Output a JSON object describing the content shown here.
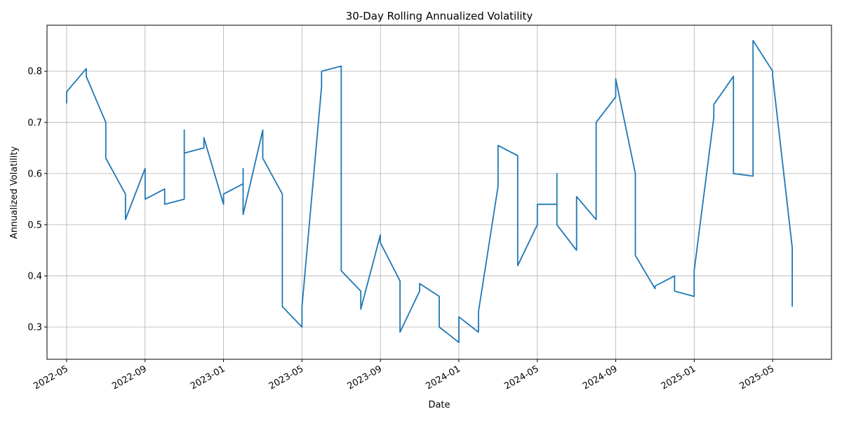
{
  "chart_data": {
    "type": "line",
    "title": "30-Day Rolling Annualized Volatility",
    "x_label": "Date",
    "y_label": "Annualized Volatility",
    "color": "#1f77b4",
    "grid": true,
    "x": [
      "2022-05",
      "2022-05",
      "2022-06",
      "2022-06",
      "2022-07",
      "2022-07",
      "2022-08",
      "2022-08",
      "2022-09",
      "2022-09",
      "2022-10",
      "2022-10",
      "2022-11",
      "2022-11",
      "2022-11",
      "2022-12",
      "2022-12",
      "2023-01",
      "2023-01",
      "2023-02",
      "2023-02",
      "2023-02",
      "2023-03",
      "2023-03",
      "2023-04",
      "2023-04",
      "2023-04",
      "2023-05",
      "2023-05",
      "2023-05",
      "2023-06",
      "2023-06",
      "2023-07",
      "2023-07",
      "2023-07",
      "2023-08",
      "2023-08",
      "2023-09",
      "2023-09",
      "2023-10",
      "2023-10",
      "2023-11",
      "2023-11",
      "2023-12",
      "2023-12",
      "2024-01",
      "2024-01",
      "2024-02",
      "2024-02",
      "2024-03",
      "2024-03",
      "2024-03",
      "2024-04",
      "2024-04",
      "2024-05",
      "2024-05",
      "2024-06",
      "2024-06",
      "2024-06",
      "2024-07",
      "2024-07",
      "2024-08",
      "2024-08",
      "2024-09",
      "2024-09",
      "2024-10",
      "2024-10",
      "2024-10",
      "2024-11",
      "2024-11",
      "2024-12",
      "2024-12",
      "2025-01",
      "2025-01",
      "2025-02",
      "2025-02",
      "2025-03",
      "2025-03",
      "2025-04",
      "2025-04",
      "2025-04",
      "2025-05",
      "2025-05",
      "2025-06",
      "2025-06",
      "2025-06"
    ],
    "values": [
      0.737,
      0.76,
      0.805,
      0.79,
      0.7,
      0.63,
      0.56,
      0.51,
      0.61,
      0.55,
      0.57,
      0.54,
      0.55,
      0.685,
      0.64,
      0.65,
      0.67,
      0.54,
      0.56,
      0.58,
      0.61,
      0.52,
      0.685,
      0.63,
      0.56,
      0.52,
      0.34,
      0.3,
      0.32,
      0.34,
      0.77,
      0.8,
      0.81,
      0.8,
      0.41,
      0.37,
      0.335,
      0.48,
      0.465,
      0.39,
      0.29,
      0.37,
      0.385,
      0.36,
      0.3,
      0.27,
      0.32,
      0.29,
      0.33,
      0.575,
      0.62,
      0.655,
      0.635,
      0.42,
      0.5,
      0.54,
      0.54,
      0.6,
      0.5,
      0.45,
      0.555,
      0.51,
      0.7,
      0.75,
      0.785,
      0.6,
      0.55,
      0.44,
      0.375,
      0.38,
      0.4,
      0.37,
      0.36,
      0.41,
      0.71,
      0.735,
      0.79,
      0.6,
      0.595,
      0.66,
      0.86,
      0.8,
      0.79,
      0.455,
      0.37,
      0.34
    ],
    "xlim": [
      "2022-04",
      "2025-08"
    ],
    "xticks": [
      "2022-05",
      "2022-09",
      "2023-01",
      "2023-05",
      "2023-09",
      "2024-01",
      "2024-05",
      "2024-09",
      "2025-01",
      "2025-05"
    ],
    "ylim": [
      0.237,
      0.89
    ],
    "yticks": [
      0.3,
      0.4,
      0.5,
      0.6,
      0.7,
      0.8
    ]
  }
}
